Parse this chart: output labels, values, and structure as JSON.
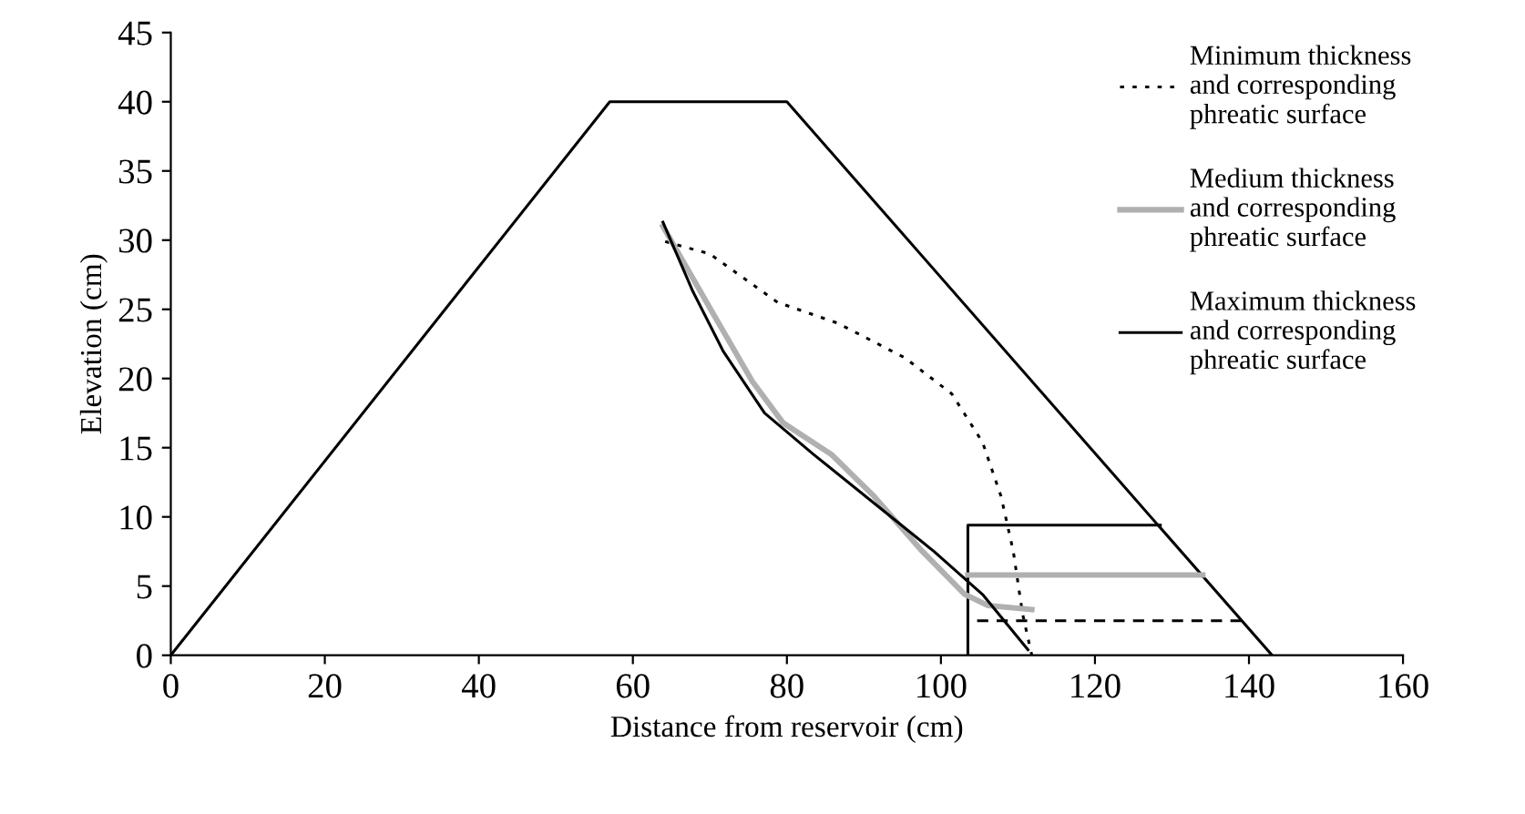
{
  "chart_data": {
    "type": "line",
    "xlabel": "Distance from reservoir (cm)",
    "ylabel": "Elevation (cm)",
    "xlim": [
      0,
      160
    ],
    "xticks": [
      0,
      20,
      40,
      60,
      80,
      100,
      120,
      140,
      160
    ],
    "ylim": [
      0,
      45
    ],
    "yticks": [
      0,
      5,
      10,
      15,
      20,
      25,
      30,
      35,
      40,
      45
    ],
    "grid": false,
    "legend": "top right",
    "marker": "none",
    "series": [
      {
        "color": "#000000",
        "line_style": "solid",
        "x": [
          0,
          57,
          80,
          143
        ],
        "values": [
          0,
          40,
          40,
          0
        ]
      },
      {
        "color": "#000000",
        "line_style": "solid",
        "x": [
          103.5,
          103.5,
          128.5
        ],
        "values": [
          0,
          9.4,
          9.4
        ]
      },
      {
        "color": "#b0b0b0",
        "line_style": "solid",
        "x": [
          103.5,
          134
        ],
        "values": [
          5.8,
          5.8
        ]
      },
      {
        "color": "#000000",
        "line_style": "dashed",
        "x": [
          104.7,
          139
        ],
        "values": [
          2.5,
          2.5
        ]
      },
      {
        "name": "Minimum thickness\nand corresponding\nphreatic surface",
        "color": "#000000",
        "line_style": "dotted",
        "x": [
          64.2,
          70.0,
          78.8,
          86.6,
          95.3,
          101.4,
          105.4,
          107.8,
          109.4,
          110.6,
          111.8
        ],
        "values": [
          29.9,
          29.0,
          25.5,
          24.0,
          21.5,
          18.9,
          15.4,
          11.5,
          7.5,
          3.0,
          0
        ]
      },
      {
        "name": "Medium thickness\nand corresponding\nphreatic surface",
        "color": "#b0b0b0",
        "line_style": "solid",
        "x": [
          63.9,
          70.0,
          75.5,
          79.5,
          85.8,
          91.3,
          97.6,
          103.1,
          106.1,
          111.8
        ],
        "values": [
          31.0,
          25.1,
          19.8,
          16.8,
          14.5,
          11.5,
          7.5,
          4.4,
          3.6,
          3.3
        ]
      },
      {
        "name": "Maximum thickness\nand corresponding\nphreatic surface",
        "color": "#000000",
        "line_style": "solid",
        "x": [
          63.9,
          67.7,
          71.7,
          77.1,
          83.5,
          91.3,
          99.1,
          105.4,
          111.3
        ],
        "values": [
          31.3,
          26.4,
          22.0,
          17.5,
          14.5,
          11.0,
          7.5,
          4.4,
          0.4
        ]
      }
    ]
  }
}
